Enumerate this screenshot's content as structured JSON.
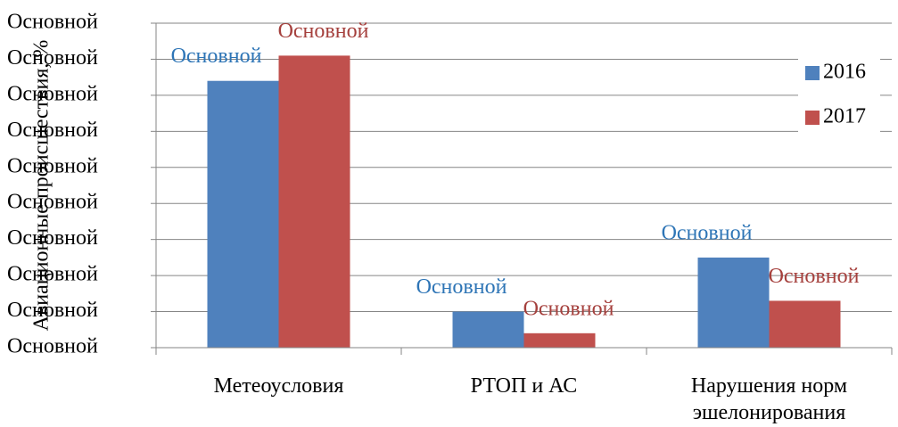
{
  "chart_data": {
    "type": "bar",
    "y_label": "Авиационные происшествия, %",
    "categories": [
      "Метеоусловия",
      "РТОП и АС",
      "Нарушения норм эшелонирования"
    ],
    "series": [
      {
        "name": "2016",
        "color": "#4f81bd",
        "label_color": "#2e75b6",
        "values": [
          7.4,
          1.0,
          2.5
        ],
        "value_labels": [
          "Основной",
          "Основной",
          "Основной"
        ]
      },
      {
        "name": "2017",
        "color": "#c0504d",
        "label_color": "#a5403d",
        "values": [
          8.1,
          0.4,
          1.3
        ],
        "value_labels": [
          "Основной",
          "Основной",
          "Основной"
        ]
      }
    ],
    "ylim": [
      0,
      9
    ],
    "yticks": [
      {
        "value": 0,
        "label": "Основной"
      },
      {
        "value": 1,
        "label": "Основной"
      },
      {
        "value": 2,
        "label": "Основной"
      },
      {
        "value": 3,
        "label": "Основной"
      },
      {
        "value": 4,
        "label": "Основной"
      },
      {
        "value": 5,
        "label": "Основной"
      },
      {
        "value": 6,
        "label": "Основной"
      },
      {
        "value": 7,
        "label": "Основной"
      },
      {
        "value": 8,
        "label": "Основной"
      },
      {
        "value": 9,
        "label": "Основной"
      }
    ],
    "grid": true,
    "legend": "right"
  }
}
